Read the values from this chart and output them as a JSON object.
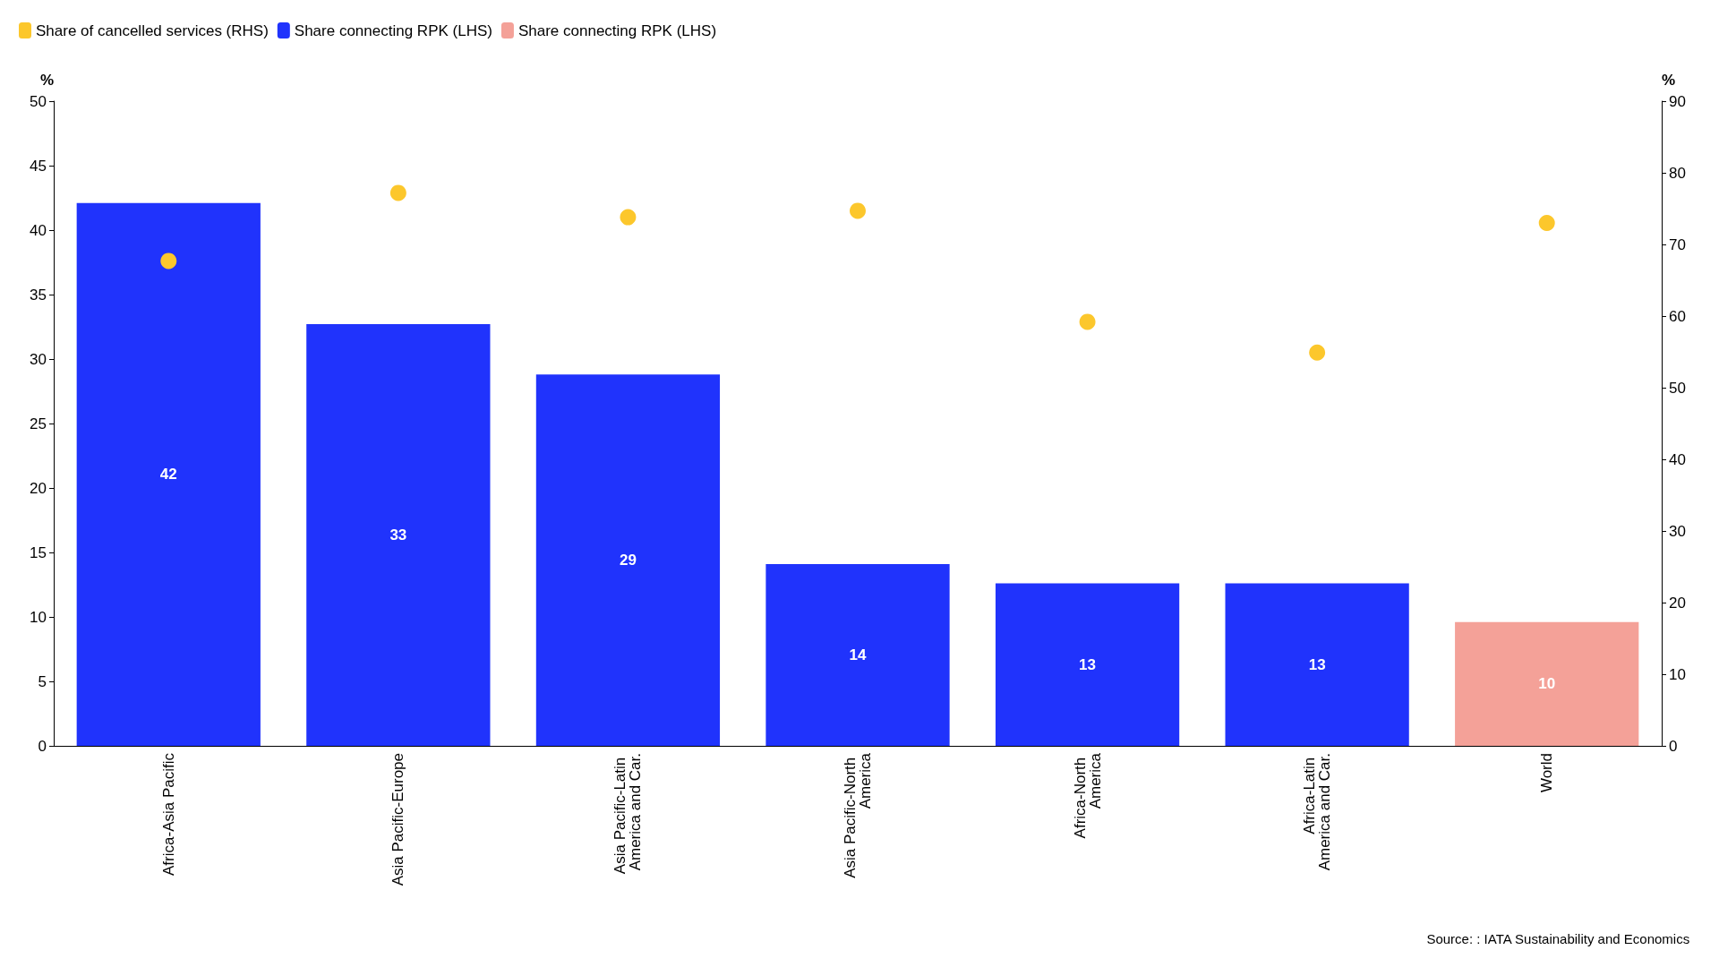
{
  "chart_data": {
    "type": "bar",
    "ylabel": "%",
    "y2label": "%",
    "categories": [
      "Africa-Asia Pacific",
      "Asia Pacific-Europe",
      "Asia Pacific-Latin America and Car.",
      "Asia Pacific-North America",
      "Africa-North America",
      "Africa-Latin America and Car.",
      "World"
    ],
    "series": [
      {
        "name": "Share of cancelled services (RHS)",
        "type": "scatter",
        "axis": "y2",
        "color": "#fcc72c",
        "values": [
          67.7,
          77.2,
          73.8,
          74.7,
          59.2,
          54.9,
          73.0
        ]
      },
      {
        "name": "Share connecting RPK (LHS)",
        "color": "#2033fc",
        "values": [
          42.1,
          32.7,
          28.8,
          14.1,
          12.6,
          12.6,
          null
        ],
        "value_labels": [
          "42",
          "33",
          "29",
          "14",
          "13",
          "13",
          null
        ]
      },
      {
        "name": "Share connecting RPK (LHS)",
        "color": "#f4a198",
        "values": [
          null,
          null,
          null,
          null,
          null,
          null,
          9.6
        ],
        "value_labels": [
          null,
          null,
          null,
          null,
          null,
          null,
          "10"
        ]
      }
    ],
    "ylim": [
      0,
      50
    ],
    "yticks": [
      0,
      5,
      10,
      15,
      20,
      25,
      30,
      35,
      40,
      45,
      50
    ],
    "y2lim": [
      0,
      90
    ],
    "y2ticks": [
      0,
      10,
      20,
      30,
      40,
      50,
      60,
      70,
      80,
      90
    ],
    "marker": "circle",
    "grid": false,
    "legend": "top left",
    "annotations": [
      "Source: : IATA Sustainability and Economics"
    ]
  }
}
